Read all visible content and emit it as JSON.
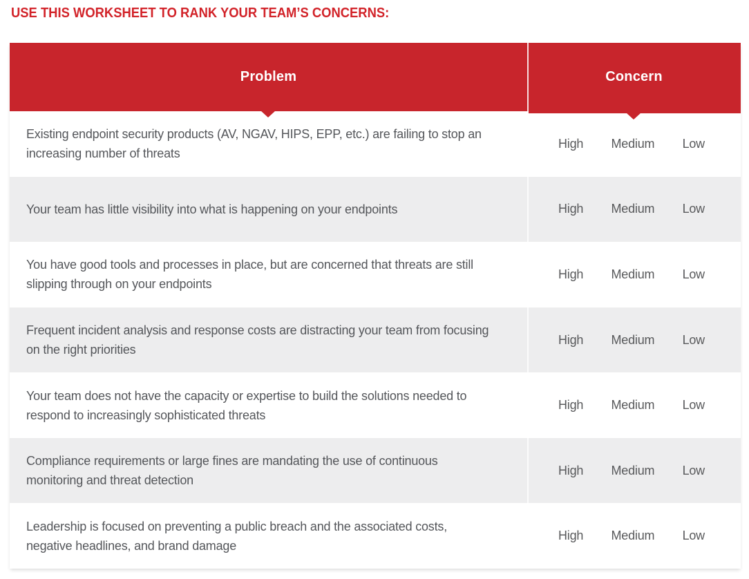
{
  "page": {
    "heading": "USE THIS WORKSHEET TO RANK YOUR TEAM’S CONCERNS:"
  },
  "table": {
    "columns": [
      {
        "label": "Problem"
      },
      {
        "label": "Concern"
      }
    ],
    "concern_options": [
      "High",
      "Medium",
      "Low"
    ],
    "rows": [
      {
        "problem": "Existing endpoint security products (AV, NGAV, HIPS, EPP, etc.) are failing to stop an increasing number of threats"
      },
      {
        "problem": "Your team has little visibility into what is happening on your endpoints"
      },
      {
        "problem": "You have good tools and processes in place, but are concerned that threats are still slipping through on your endpoints"
      },
      {
        "problem": "Frequent incident analysis and response costs are distracting your team from focusing on the right priorities"
      },
      {
        "problem": "Your team does not have the capacity or expertise to build the solutions needed to respond to increasingly sophisticated threats"
      },
      {
        "problem": "Compliance requirements or large fines are mandating the use of continuous monitoring and threat detection"
      },
      {
        "problem": "Leadership is focused on preventing a public breach and the associated costs, negative headlines, and brand damage"
      }
    ]
  },
  "colors": {
    "header_red": "#C8252C",
    "heading_text_red": "#D22329",
    "row_alt_bg": "#EDEDEE",
    "body_text_gray": "#54565A"
  }
}
